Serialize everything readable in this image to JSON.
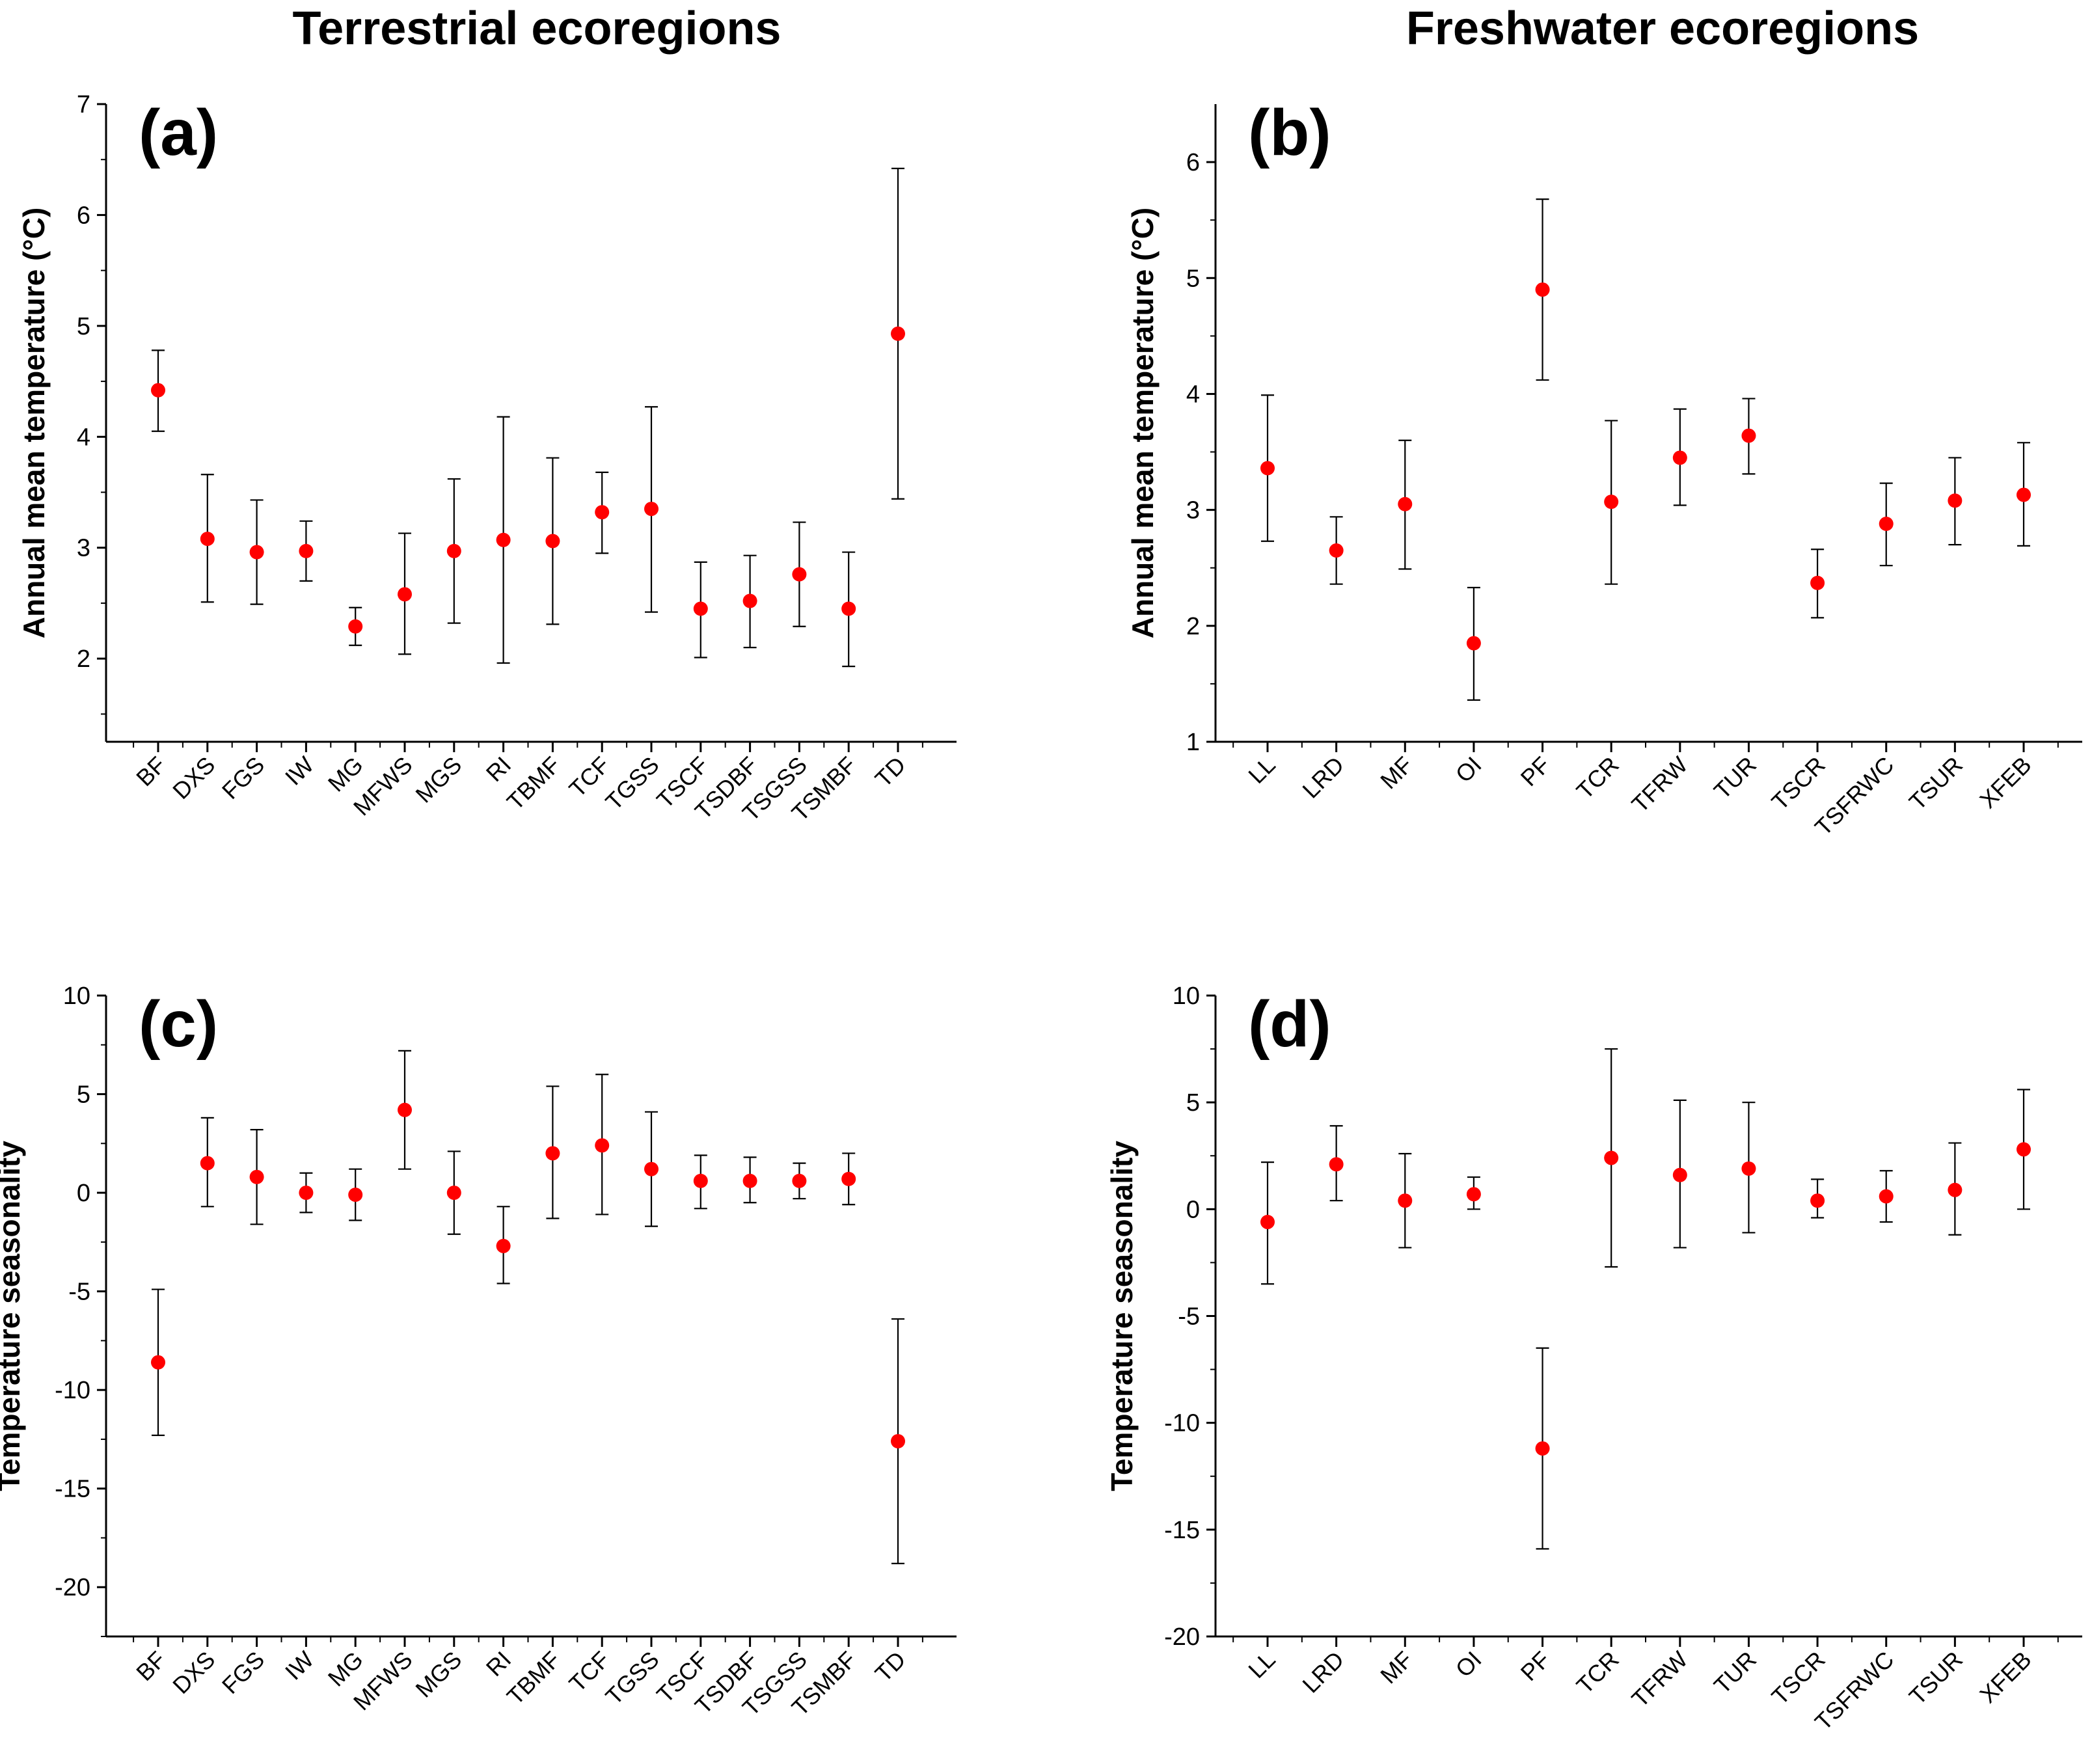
{
  "column_titles": {
    "left": "Terrestrial ecoregions",
    "right": "Freshwater ecoregions"
  },
  "colors": {
    "point": "#ff0000",
    "error_bar": "#000000"
  },
  "chart_data": [
    {
      "id": "a",
      "panel_label": "(a)",
      "type": "scatter",
      "error_bars": true,
      "ylabel": "Annual mean temperature (°C)",
      "ylim": [
        1.25,
        7
      ],
      "yticks": [
        2,
        3,
        4,
        5,
        6,
        7
      ],
      "categories": [
        "BF",
        "DXS",
        "FGS",
        "IW",
        "MG",
        "MFWS",
        "MGS",
        "RI",
        "TBMF",
        "TCF",
        "TGSS",
        "TSCF",
        "TSDBF",
        "TSGSS",
        "TSMBF",
        "TD"
      ],
      "values": [
        4.42,
        3.08,
        2.96,
        2.97,
        2.29,
        2.58,
        2.97,
        3.07,
        3.06,
        3.32,
        3.35,
        2.45,
        2.52,
        2.76,
        2.45,
        4.93
      ],
      "err_low": [
        4.05,
        2.51,
        2.49,
        2.7,
        2.12,
        2.04,
        2.32,
        1.96,
        2.31,
        2.95,
        2.42,
        2.01,
        2.1,
        2.29,
        1.93,
        3.44
      ],
      "err_high": [
        4.78,
        3.66,
        3.43,
        3.24,
        2.46,
        3.13,
        3.62,
        4.18,
        3.81,
        3.68,
        4.27,
        2.87,
        2.93,
        3.23,
        2.96,
        6.42
      ],
      "grid": false,
      "legend": "none"
    },
    {
      "id": "b",
      "panel_label": "(b)",
      "type": "scatter",
      "error_bars": true,
      "ylabel": "Annual mean temperature (°C)",
      "ylim": [
        1,
        6.5
      ],
      "yticks": [
        1,
        2,
        3,
        4,
        5,
        6
      ],
      "categories": [
        "LL",
        "LRD",
        "MF",
        "OI",
        "PF",
        "TCR",
        "TFRW",
        "TUR",
        "TSCR",
        "TSFRWC",
        "TSUR",
        "XFEB"
      ],
      "values": [
        3.36,
        2.65,
        3.05,
        1.85,
        4.9,
        3.07,
        3.45,
        3.64,
        2.37,
        2.88,
        3.08,
        3.13
      ],
      "err_low": [
        2.73,
        2.36,
        2.49,
        1.36,
        4.12,
        2.36,
        3.04,
        3.31,
        2.07,
        2.52,
        2.7,
        2.69
      ],
      "err_high": [
        3.99,
        2.94,
        3.6,
        2.33,
        5.68,
        3.77,
        3.87,
        3.96,
        2.66,
        3.23,
        3.45,
        3.58
      ],
      "grid": false,
      "legend": "none"
    },
    {
      "id": "c",
      "panel_label": "(c)",
      "type": "scatter",
      "error_bars": true,
      "ylabel": "Temperature seasonality",
      "ylim": [
        -22.5,
        10
      ],
      "yticks": [
        -20,
        -15,
        -10,
        -5,
        0,
        5,
        10
      ],
      "categories": [
        "BF",
        "DXS",
        "FGS",
        "IW",
        "MG",
        "MFWS",
        "MGS",
        "RI",
        "TBMF",
        "TCF",
        "TGSS",
        "TSCF",
        "TSDBF",
        "TSGSS",
        "TSMBF",
        "TD"
      ],
      "values": [
        -8.6,
        1.5,
        0.8,
        0.0,
        -0.1,
        4.2,
        0.0,
        -2.7,
        2.0,
        2.4,
        1.2,
        0.6,
        0.6,
        0.6,
        0.7,
        -12.6
      ],
      "err_low": [
        -12.3,
        -0.7,
        -1.6,
        -1.0,
        -1.4,
        1.2,
        -2.1,
        -4.6,
        -1.3,
        -1.1,
        -1.7,
        -0.8,
        -0.5,
        -0.3,
        -0.6,
        -18.8
      ],
      "err_high": [
        -4.9,
        3.8,
        3.2,
        1.0,
        1.2,
        7.2,
        2.1,
        -0.7,
        5.4,
        6.0,
        4.1,
        1.9,
        1.8,
        1.5,
        2.0,
        -6.4
      ],
      "grid": false,
      "legend": "none"
    },
    {
      "id": "d",
      "panel_label": "(d)",
      "type": "scatter",
      "error_bars": true,
      "ylabel": "Temperature seasonality",
      "ylim": [
        -20,
        10
      ],
      "yticks": [
        -20,
        -15,
        -10,
        -5,
        0,
        5,
        10
      ],
      "categories": [
        "LL",
        "LRD",
        "MF",
        "OI",
        "PF",
        "TCR",
        "TFRW",
        "TUR",
        "TSCR",
        "TSFRWC",
        "TSUR",
        "XFEB"
      ],
      "values": [
        -0.6,
        2.1,
        0.4,
        0.7,
        -11.2,
        2.4,
        1.6,
        1.9,
        0.4,
        0.6,
        0.9,
        2.8
      ],
      "err_low": [
        -3.5,
        0.4,
        -1.8,
        0.0,
        -15.9,
        -2.7,
        -1.8,
        -1.1,
        -0.4,
        -0.6,
        -1.2,
        0.0
      ],
      "err_high": [
        2.2,
        3.9,
        2.6,
        1.5,
        -6.5,
        7.5,
        5.1,
        5.0,
        1.4,
        1.8,
        3.1,
        5.6
      ],
      "grid": false,
      "legend": "none"
    }
  ]
}
